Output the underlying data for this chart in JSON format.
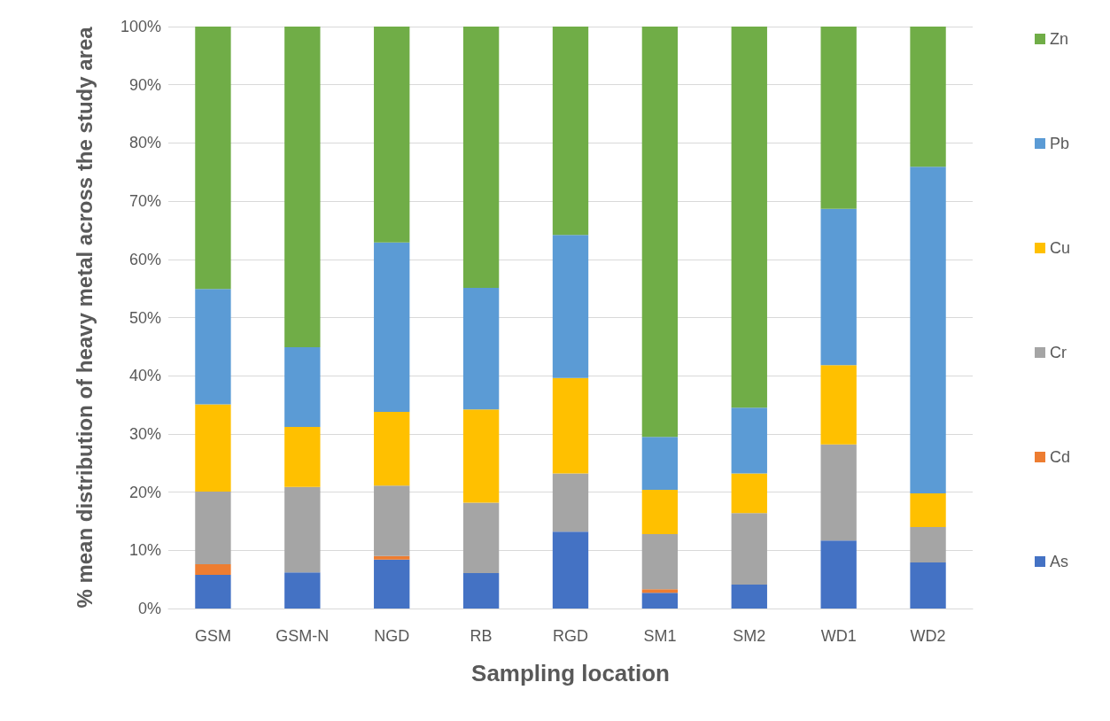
{
  "chart_data": {
    "type": "bar",
    "stacked": true,
    "xlabel": "Sampling location",
    "ylabel": "% mean distribution of heavy metal across the study area",
    "categories": [
      "GSM",
      "GSM-N",
      "NGD",
      "RB",
      "RGD",
      "SM1",
      "SM2",
      "WD1",
      "WD2"
    ],
    "series": [
      {
        "name": "As",
        "color": "#4472c4",
        "values": [
          5.8,
          6.2,
          8.4,
          6.1,
          13.2,
          2.7,
          4.1,
          11.7,
          7.9
        ]
      },
      {
        "name": "Cd",
        "color": "#ed7d31",
        "values": [
          1.8,
          0,
          0.6,
          0,
          0,
          0.6,
          0,
          0,
          0
        ]
      },
      {
        "name": "Cr",
        "color": "#a5a5a5",
        "values": [
          12.5,
          14.7,
          12.1,
          12.1,
          10.0,
          9.5,
          12.3,
          16.5,
          6.1
        ]
      },
      {
        "name": "Cu",
        "color": "#ffc000",
        "values": [
          15.0,
          10.3,
          12.7,
          16.0,
          16.4,
          7.6,
          6.8,
          13.6,
          5.8
        ]
      },
      {
        "name": "Pb",
        "color": "#5b9bd5",
        "values": [
          19.8,
          13.7,
          29.1,
          20.9,
          24.6,
          9.1,
          11.3,
          26.9,
          56.1
        ]
      },
      {
        "name": "Zn",
        "color": "#70ad47",
        "values": [
          45.1,
          55.1,
          37.1,
          44.9,
          35.8,
          70.5,
          65.5,
          31.3,
          24.1
        ]
      }
    ],
    "ylim": [
      0,
      100
    ],
    "yticks": [
      {
        "value": 0,
        "label": "0%"
      },
      {
        "value": 10,
        "label": "10%"
      },
      {
        "value": 20,
        "label": "20%"
      },
      {
        "value": 30,
        "label": "30%"
      },
      {
        "value": 40,
        "label": "40%"
      },
      {
        "value": 50,
        "label": "50%"
      },
      {
        "value": 60,
        "label": "60%"
      },
      {
        "value": 70,
        "label": "70%"
      },
      {
        "value": 80,
        "label": "80%"
      },
      {
        "value": 90,
        "label": "90%"
      },
      {
        "value": 100,
        "label": "100%"
      }
    ],
    "grid": "y",
    "legend": "right"
  }
}
